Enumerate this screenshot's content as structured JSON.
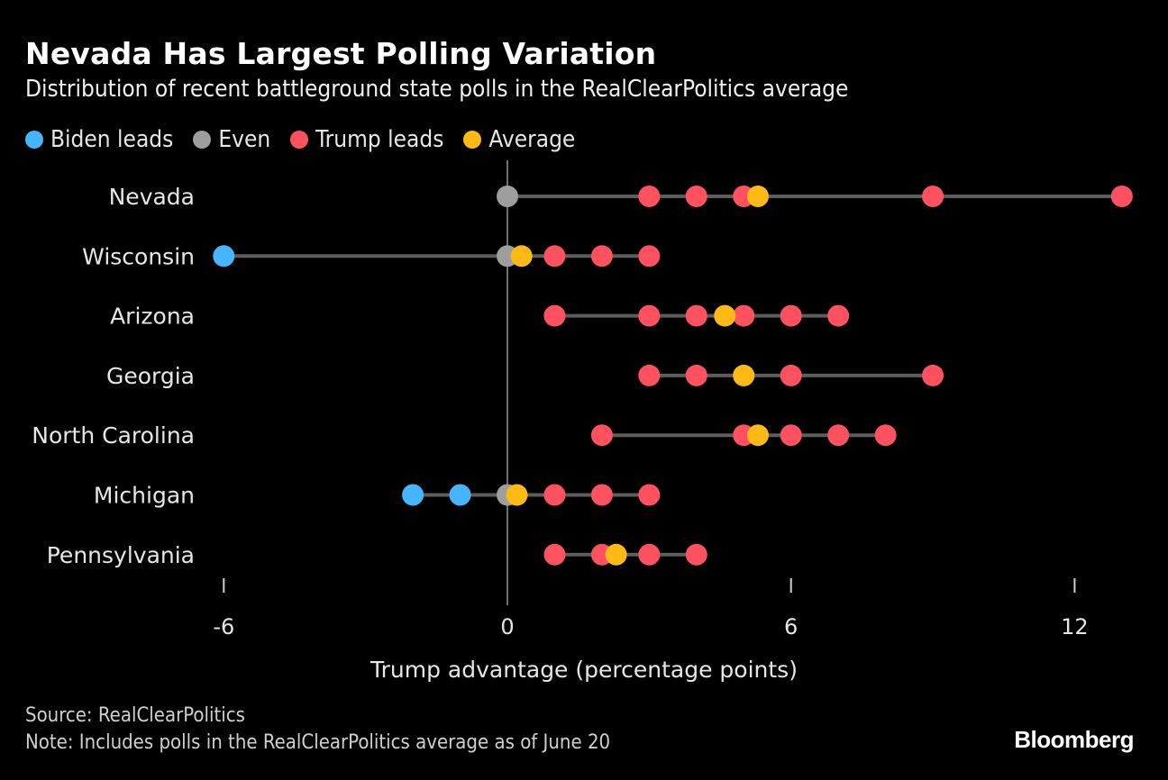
{
  "chart_data": {
    "type": "scatter",
    "title": "Nevada Has Largest Polling Variation",
    "subtitle": "Distribution of recent battleground state polls in the RealClearPolitics average",
    "xlabel": "Trump advantage (percentage points)",
    "ylabel": "",
    "xlim": [
      -6.3,
      13.3
    ],
    "xticks": [
      -6,
      0,
      6,
      12
    ],
    "xtick_labels": [
      "-6",
      "0",
      "6",
      "12"
    ],
    "legend": [
      {
        "key": "biden",
        "label": "Biden leads",
        "color": "#45b6fe"
      },
      {
        "key": "even",
        "label": "Even",
        "color": "#9e9e9e"
      },
      {
        "key": "trump",
        "label": "Trump leads",
        "color": "#ff5160"
      },
      {
        "key": "average",
        "label": "Average",
        "color": "#fdba15"
      }
    ],
    "legend_position": "top-left",
    "series": [
      {
        "state": "Nevada",
        "polls": [
          0,
          3,
          4,
          5,
          9,
          13
        ],
        "average": 5.3
      },
      {
        "state": "Wisconsin",
        "polls": [
          -6,
          0,
          1,
          2,
          3
        ],
        "average": 0.3
      },
      {
        "state": "Arizona",
        "polls": [
          1,
          3,
          4,
          5,
          6,
          7
        ],
        "average": 4.6
      },
      {
        "state": "Georgia",
        "polls": [
          3,
          4,
          5,
          6,
          9
        ],
        "average": 5.0
      },
      {
        "state": "North Carolina",
        "polls": [
          2,
          5,
          6,
          7,
          8
        ],
        "average": 5.3
      },
      {
        "state": "Michigan",
        "polls": [
          -2,
          -1,
          0,
          1,
          2,
          3
        ],
        "average": 0.2
      },
      {
        "state": "Pennsylvania",
        "polls": [
          1,
          2,
          3,
          4
        ],
        "average": 2.3
      }
    ]
  },
  "footer": {
    "source": "Source: RealClearPolitics",
    "note": "Note: Includes polls in the RealClearPolitics average as of June 20",
    "brand": "Bloomberg"
  }
}
